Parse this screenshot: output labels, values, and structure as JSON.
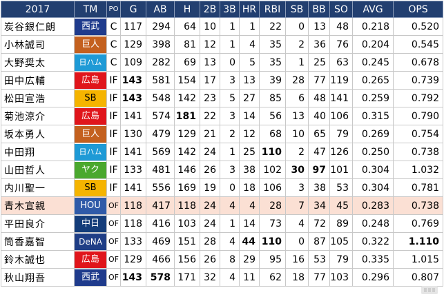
{
  "header": {
    "year": "2017",
    "cols": [
      "TM",
      "PO",
      "G",
      "AB",
      "H",
      "2B",
      "3B",
      "HR",
      "RBI",
      "SB",
      "BB",
      "SO",
      "AVG",
      "OPS"
    ]
  },
  "colors": {
    "header_bg": "#223f70",
    "highlight_row": "#fbe0d4",
    "西武": "#1f3b8c",
    "巨人": "#c4601e",
    "日ハム": "#1e9ad6",
    "広島": "#e0151b",
    "SB": "#f5b400",
    "ヤク": "#4aa82e",
    "HOU": "#2f5aa8",
    "中日": "#143d7a",
    "DeNA": "#1f3e86"
  },
  "rows": [
    {
      "name": "炭谷銀仁朗",
      "team": "西武",
      "pos": "C",
      "G": "117",
      "AB": "294",
      "H": "64",
      "2B": "10",
      "3B": "1",
      "HR": "1",
      "RBI": "22",
      "SB": "0",
      "BB": "13",
      "SO": "48",
      "AVG": "0.218",
      "OPS": "0.520"
    },
    {
      "name": "小林誠司",
      "team": "巨人",
      "pos": "C",
      "G": "129",
      "AB": "398",
      "H": "81",
      "2B": "12",
      "3B": "1",
      "HR": "4",
      "RBI": "35",
      "SB": "2",
      "BB": "36",
      "SO": "76",
      "AVG": "0.204",
      "OPS": "0.545"
    },
    {
      "name": "大野奨太",
      "team": "日ハム",
      "pos": "C",
      "G": "109",
      "AB": "282",
      "H": "69",
      "2B": "13",
      "3B": "0",
      "HR": "5",
      "RBI": "35",
      "SB": "1",
      "BB": "25",
      "SO": "63",
      "AVG": "0.245",
      "OPS": "0.678"
    },
    {
      "name": "田中広輔",
      "team": "広島",
      "pos": "IF",
      "G": "143",
      "AB": "581",
      "H": "154",
      "2B": "17",
      "3B": "3",
      "HR": "13",
      "RBI": "39",
      "SB": "28",
      "BB": "77",
      "SO": "119",
      "AVG": "0.265",
      "OPS": "0.739"
    },
    {
      "name": "松田宣浩",
      "team": "SB",
      "pos": "IF",
      "G": "143",
      "AB": "548",
      "H": "142",
      "2B": "23",
      "3B": "5",
      "HR": "27",
      "RBI": "85",
      "SB": "6",
      "BB": "48",
      "SO": "141",
      "AVG": "0.259",
      "OPS": "0.792"
    },
    {
      "name": "菊池涼介",
      "team": "広島",
      "pos": "IF",
      "G": "141",
      "AB": "574",
      "H": "181",
      "2B": "22",
      "3B": "3",
      "HR": "14",
      "RBI": "56",
      "SB": "13",
      "BB": "40",
      "SO": "106",
      "AVG": "0.315",
      "OPS": "0.790"
    },
    {
      "name": "坂本勇人",
      "team": "巨人",
      "pos": "IF",
      "G": "130",
      "AB": "479",
      "H": "129",
      "2B": "21",
      "3B": "2",
      "HR": "12",
      "RBI": "68",
      "SB": "10",
      "BB": "65",
      "SO": "79",
      "AVG": "0.269",
      "OPS": "0.754"
    },
    {
      "name": "中田翔",
      "team": "日ハム",
      "pos": "IF",
      "G": "141",
      "AB": "569",
      "H": "142",
      "2B": "24",
      "3B": "1",
      "HR": "25",
      "RBI": "110",
      "SB": "2",
      "BB": "47",
      "SO": "126",
      "AVG": "0.250",
      "OPS": "0.738"
    },
    {
      "name": "山田哲人",
      "team": "ヤク",
      "pos": "IF",
      "G": "133",
      "AB": "481",
      "H": "146",
      "2B": "26",
      "3B": "3",
      "HR": "38",
      "RBI": "102",
      "SB": "30",
      "BB": "97",
      "SO": "101",
      "AVG": "0.304",
      "OPS": "1.032"
    },
    {
      "name": "内川聖一",
      "team": "SB",
      "pos": "IF",
      "G": "141",
      "AB": "556",
      "H": "169",
      "2B": "19",
      "3B": "0",
      "HR": "18",
      "RBI": "106",
      "SB": "3",
      "BB": "38",
      "SO": "53",
      "AVG": "0.304",
      "OPS": "0.781"
    },
    {
      "name": "青木宣親",
      "team": "HOU",
      "pos": "OF",
      "G": "118",
      "AB": "417",
      "H": "118",
      "2B": "24",
      "3B": "4",
      "HR": "4",
      "RBI": "28",
      "SB": "7",
      "BB": "34",
      "SO": "45",
      "AVG": "0.283",
      "OPS": "0.738"
    },
    {
      "name": "平田良介",
      "team": "中日",
      "pos": "OF",
      "G": "118",
      "AB": "416",
      "H": "103",
      "2B": "24",
      "3B": "1",
      "HR": "14",
      "RBI": "73",
      "SB": "4",
      "BB": "72",
      "SO": "89",
      "AVG": "0.248",
      "OPS": "0.769"
    },
    {
      "name": "筒香嘉智",
      "team": "DeNA",
      "pos": "OF",
      "G": "133",
      "AB": "469",
      "H": "151",
      "2B": "28",
      "3B": "4",
      "HR": "44",
      "RBI": "110",
      "SB": "0",
      "BB": "87",
      "SO": "105",
      "AVG": "0.322",
      "OPS": "1.110"
    },
    {
      "name": "鈴木誠也",
      "team": "広島",
      "pos": "OF",
      "G": "129",
      "AB": "466",
      "H": "156",
      "2B": "26",
      "3B": "8",
      "HR": "29",
      "RBI": "95",
      "SB": "16",
      "BB": "53",
      "SO": "79",
      "AVG": "0.335",
      "OPS": "1.015"
    },
    {
      "name": "秋山翔吾",
      "team": "西武",
      "pos": "OF",
      "G": "143",
      "AB": "578",
      "H": "171",
      "2B": "32",
      "3B": "4",
      "HR": "11",
      "RBI": "62",
      "SB": "18",
      "BB": "77",
      "SO": "103",
      "AVG": "0.296",
      "OPS": "0.807"
    }
  ],
  "bold": [
    [
      3,
      "G"
    ],
    [
      4,
      "G"
    ],
    [
      5,
      "H"
    ],
    [
      7,
      "RBI"
    ],
    [
      8,
      "SB"
    ],
    [
      8,
      "BB"
    ],
    [
      12,
      "HR"
    ],
    [
      12,
      "RBI"
    ],
    [
      12,
      "OPS"
    ],
    [
      14,
      "G"
    ],
    [
      14,
      "AB"
    ]
  ],
  "highlight_row": 10
}
